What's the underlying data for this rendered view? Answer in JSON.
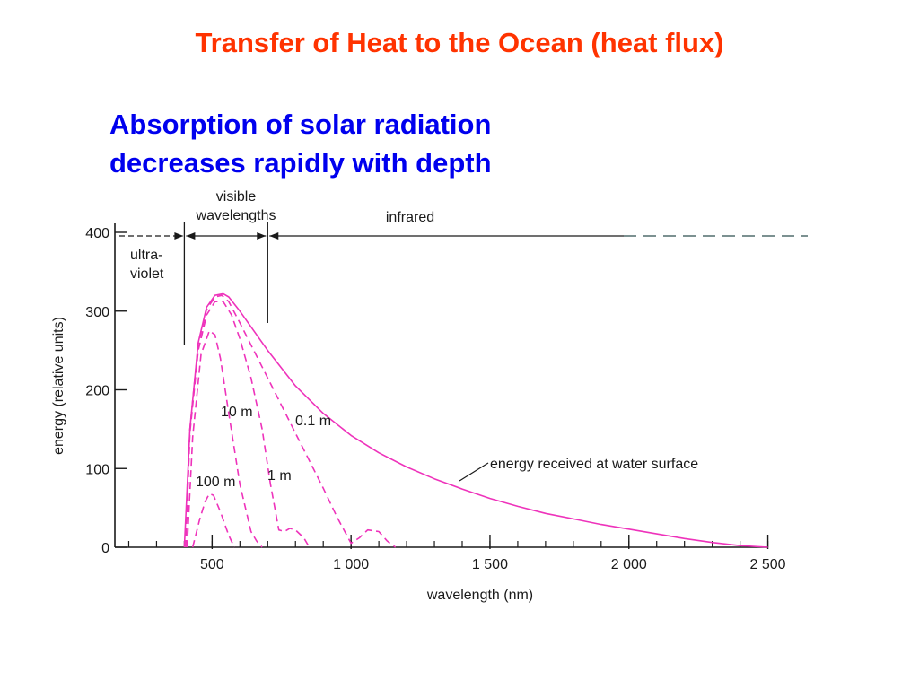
{
  "slide": {
    "title": "Transfer of Heat to the Ocean (heat flux)",
    "subtitle_lines": [
      "Absorption of solar radiation",
      "decreases rapidly with depth"
    ]
  },
  "colors": {
    "title": "#ff3300",
    "subtitle": "#0000ee",
    "curves": "#ee33bb",
    "axis": "#1a1a1a"
  },
  "chart_data": {
    "type": "line",
    "xlabel": "wavelength (nm)",
    "ylabel": "energy  (relative units)",
    "xlim": [
      150,
      2500
    ],
    "ylim": [
      0,
      400
    ],
    "xticks": [
      500,
      1000,
      1500,
      2000,
      2500
    ],
    "xtick_labels": [
      "500",
      "1 000",
      "1 500",
      "2 000",
      "2 500"
    ],
    "yticks": [
      0,
      100,
      200,
      300,
      400
    ],
    "ytick_labels": [
      "0",
      "100",
      "200",
      "300",
      "400"
    ],
    "grid": false,
    "regions": [
      {
        "label": "ultra-\nviolet",
        "from": 150,
        "to": 400
      },
      {
        "label": "visible\nwavelengths",
        "from": 400,
        "to": 700
      },
      {
        "label": "infrared",
        "from": 700,
        "to": 2500
      }
    ],
    "series": [
      {
        "name": "energy received at water surface",
        "style": "solid",
        "x": [
          400,
          420,
          450,
          480,
          510,
          540,
          560,
          600,
          650,
          700,
          800,
          900,
          1000,
          1100,
          1200,
          1300,
          1400,
          1500,
          1600,
          1700,
          1800,
          1900,
          2000,
          2100,
          2200,
          2300,
          2400,
          2500
        ],
        "y": [
          0,
          150,
          260,
          305,
          320,
          322,
          318,
          300,
          275,
          250,
          205,
          170,
          142,
          120,
          102,
          87,
          74,
          62,
          52,
          43,
          36,
          29,
          23,
          17,
          11,
          6,
          2,
          0
        ]
      },
      {
        "name": "0.1 m",
        "style": "dashed",
        "x": [
          405,
          420,
          450,
          480,
          510,
          535,
          560,
          600,
          650,
          700,
          750,
          800,
          850,
          900,
          950,
          1000,
          1030,
          1060,
          1100,
          1130,
          1160
        ],
        "y": [
          0,
          150,
          258,
          302,
          318,
          320,
          312,
          285,
          250,
          215,
          180,
          145,
          110,
          75,
          38,
          5,
          12,
          22,
          20,
          8,
          0
        ]
      },
      {
        "name": "1 m",
        "style": "dashed",
        "x": [
          405,
          420,
          450,
          480,
          510,
          540,
          570,
          600,
          640,
          680,
          710,
          740,
          760,
          780,
          800,
          830,
          850
        ],
        "y": [
          0,
          145,
          250,
          295,
          312,
          312,
          295,
          265,
          215,
          150,
          80,
          22,
          20,
          24,
          22,
          12,
          0
        ]
      },
      {
        "name": "10 m",
        "style": "dashed",
        "x": [
          410,
          430,
          460,
          490,
          510,
          530,
          560,
          600,
          640,
          660,
          680
        ],
        "y": [
          0,
          140,
          245,
          275,
          270,
          240,
          170,
          80,
          20,
          8,
          0
        ]
      },
      {
        "name": "100 m",
        "style": "dashed",
        "x": [
          430,
          455,
          475,
          490,
          505,
          530,
          560,
          580
        ],
        "y": [
          0,
          35,
          58,
          68,
          66,
          45,
          15,
          0
        ]
      }
    ]
  }
}
